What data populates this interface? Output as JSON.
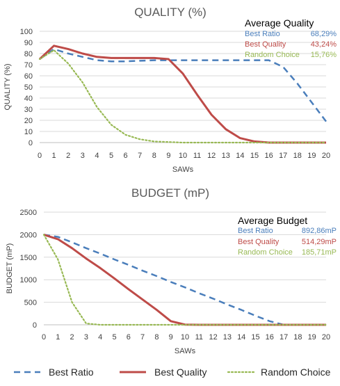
{
  "colors": {
    "best_ratio": "#4a7ebb",
    "best_quality": "#be4b48",
    "random_choice": "#98b954",
    "grid": "#d9d9d9",
    "axis": "#bfbfbf"
  },
  "legend": {
    "items": [
      {
        "label": "Best Ratio",
        "style": "dashed",
        "color": "#4a7ebb"
      },
      {
        "label": "Best Quality",
        "style": "solid",
        "color": "#be4b48"
      },
      {
        "label": "Random Choice",
        "style": "dotted",
        "color": "#98b954"
      }
    ]
  },
  "chart_data": [
    {
      "type": "line",
      "title": "QUALITY (%)",
      "xlabel": "SAWs",
      "ylabel": "QUALITY (%)",
      "xlim": [
        0,
        20
      ],
      "ylim": [
        0,
        100
      ],
      "xticks": [
        "0",
        "1",
        "2",
        "3",
        "4",
        "5",
        "6",
        "7",
        "8",
        "9",
        "10",
        "11",
        "12",
        "13",
        "14",
        "15",
        "16",
        "17",
        "18",
        "19",
        "20"
      ],
      "yticks": [
        "0",
        "10",
        "20",
        "30",
        "40",
        "50",
        "60",
        "70",
        "80",
        "90",
        "100"
      ],
      "grid": "horizontal",
      "x": [
        0,
        1,
        2,
        3,
        4,
        5,
        6,
        7,
        8,
        9,
        10,
        11,
        12,
        13,
        14,
        15,
        16,
        17,
        18,
        19,
        20
      ],
      "series": [
        {
          "name": "Best Ratio",
          "style": "dashed",
          "color": "#4a7ebb",
          "values": [
            75,
            84,
            80,
            77,
            74,
            73,
            73,
            73.5,
            74,
            74,
            74,
            74,
            74,
            74,
            74,
            74,
            74,
            68,
            53,
            36,
            19
          ]
        },
        {
          "name": "Best Quality",
          "style": "solid",
          "color": "#be4b48",
          "values": [
            75,
            87,
            84,
            80,
            77,
            76,
            76,
            76,
            76,
            75,
            62,
            43,
            25,
            12,
            4,
            1,
            0,
            0,
            0,
            0,
            0
          ]
        },
        {
          "name": "Random Choice",
          "style": "dotted",
          "color": "#98b954",
          "values": [
            75,
            83,
            71,
            54,
            32,
            16,
            7,
            3,
            1,
            0.5,
            0,
            0,
            0,
            0,
            0,
            0,
            0,
            0,
            0,
            0,
            0
          ]
        }
      ],
      "summary": {
        "heading": "Average Quality",
        "rows": [
          {
            "name": "Best Ratio",
            "value": "68,29%",
            "color": "#4a7ebb"
          },
          {
            "name": "Best Quality",
            "value": "43,24%",
            "color": "#be4b48"
          },
          {
            "name": "Random Choice",
            "value": "15,76%",
            "color": "#98b954"
          }
        ]
      }
    },
    {
      "type": "line",
      "title": "BUDGET (mP)",
      "xlabel": "SAWs",
      "ylabel": "BUDGET (mP)",
      "xlim": [
        0,
        20
      ],
      "ylim": [
        0,
        2500
      ],
      "xticks": [
        "0",
        "1",
        "2",
        "3",
        "4",
        "5",
        "6",
        "7",
        "8",
        "9",
        "10",
        "11",
        "12",
        "13",
        "14",
        "15",
        "16",
        "17",
        "18",
        "19",
        "20"
      ],
      "yticks": [
        "0",
        "500",
        "1000",
        "1500",
        "2000",
        "2500"
      ],
      "grid": "horizontal",
      "x": [
        0,
        1,
        2,
        3,
        4,
        5,
        6,
        7,
        8,
        9,
        10,
        11,
        12,
        13,
        14,
        15,
        16,
        17,
        18,
        19,
        20
      ],
      "series": [
        {
          "name": "Best Ratio",
          "style": "dashed",
          "color": "#4a7ebb",
          "values": [
            2000,
            1950,
            1830,
            1700,
            1580,
            1450,
            1330,
            1200,
            1080,
            950,
            830,
            700,
            580,
            450,
            330,
            200,
            80,
            0,
            0,
            0,
            0
          ]
        },
        {
          "name": "Best Quality",
          "style": "solid",
          "color": "#be4b48",
          "values": [
            2000,
            1900,
            1700,
            1470,
            1260,
            1030,
            790,
            560,
            330,
            80,
            5,
            0,
            0,
            0,
            0,
            0,
            0,
            0,
            0,
            0,
            0
          ]
        },
        {
          "name": "Random Choice",
          "style": "dotted",
          "color": "#98b954",
          "values": [
            2000,
            1450,
            500,
            30,
            0,
            0,
            0,
            0,
            0,
            0,
            0,
            0,
            0,
            0,
            0,
            0,
            0,
            0,
            0,
            0,
            0
          ]
        }
      ],
      "summary": {
        "heading": "Average Budget",
        "rows": [
          {
            "name": "Best Ratio",
            "value": "892,86mP",
            "color": "#4a7ebb"
          },
          {
            "name": "Best Quality",
            "value": "514,29mP",
            "color": "#be4b48"
          },
          {
            "name": "Random Choice",
            "value": "185,71mP",
            "color": "#98b954"
          }
        ]
      }
    }
  ]
}
